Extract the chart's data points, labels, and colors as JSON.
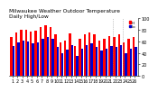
{
  "title": "Milwaukee Weather Outdoor Temperature",
  "subtitle": "Daily High/Low",
  "highs": [
    68,
    75,
    80,
    80,
    77,
    79,
    85,
    88,
    85,
    72,
    58,
    62,
    74,
    52,
    65,
    72,
    76,
    72,
    62,
    65,
    70,
    68,
    72,
    58,
    65,
    68
  ],
  "lows": [
    52,
    58,
    62,
    60,
    56,
    58,
    65,
    67,
    65,
    50,
    40,
    46,
    54,
    35,
    48,
    54,
    56,
    50,
    44,
    48,
    52,
    50,
    54,
    40,
    48,
    50
  ],
  "high_color": "#ff0000",
  "low_color": "#0000cc",
  "bg_color": "#ffffff",
  "ylim": [
    0,
    100
  ],
  "bar_width": 0.45,
  "dashed_indices": [
    20.5,
    22.5
  ],
  "legend_high": "Hi",
  "legend_low": "Lo",
  "xlabel_fontsize": 3.5,
  "title_fontsize": 4.2,
  "ylabel_fontsize": 3.5,
  "n_bars": 26
}
